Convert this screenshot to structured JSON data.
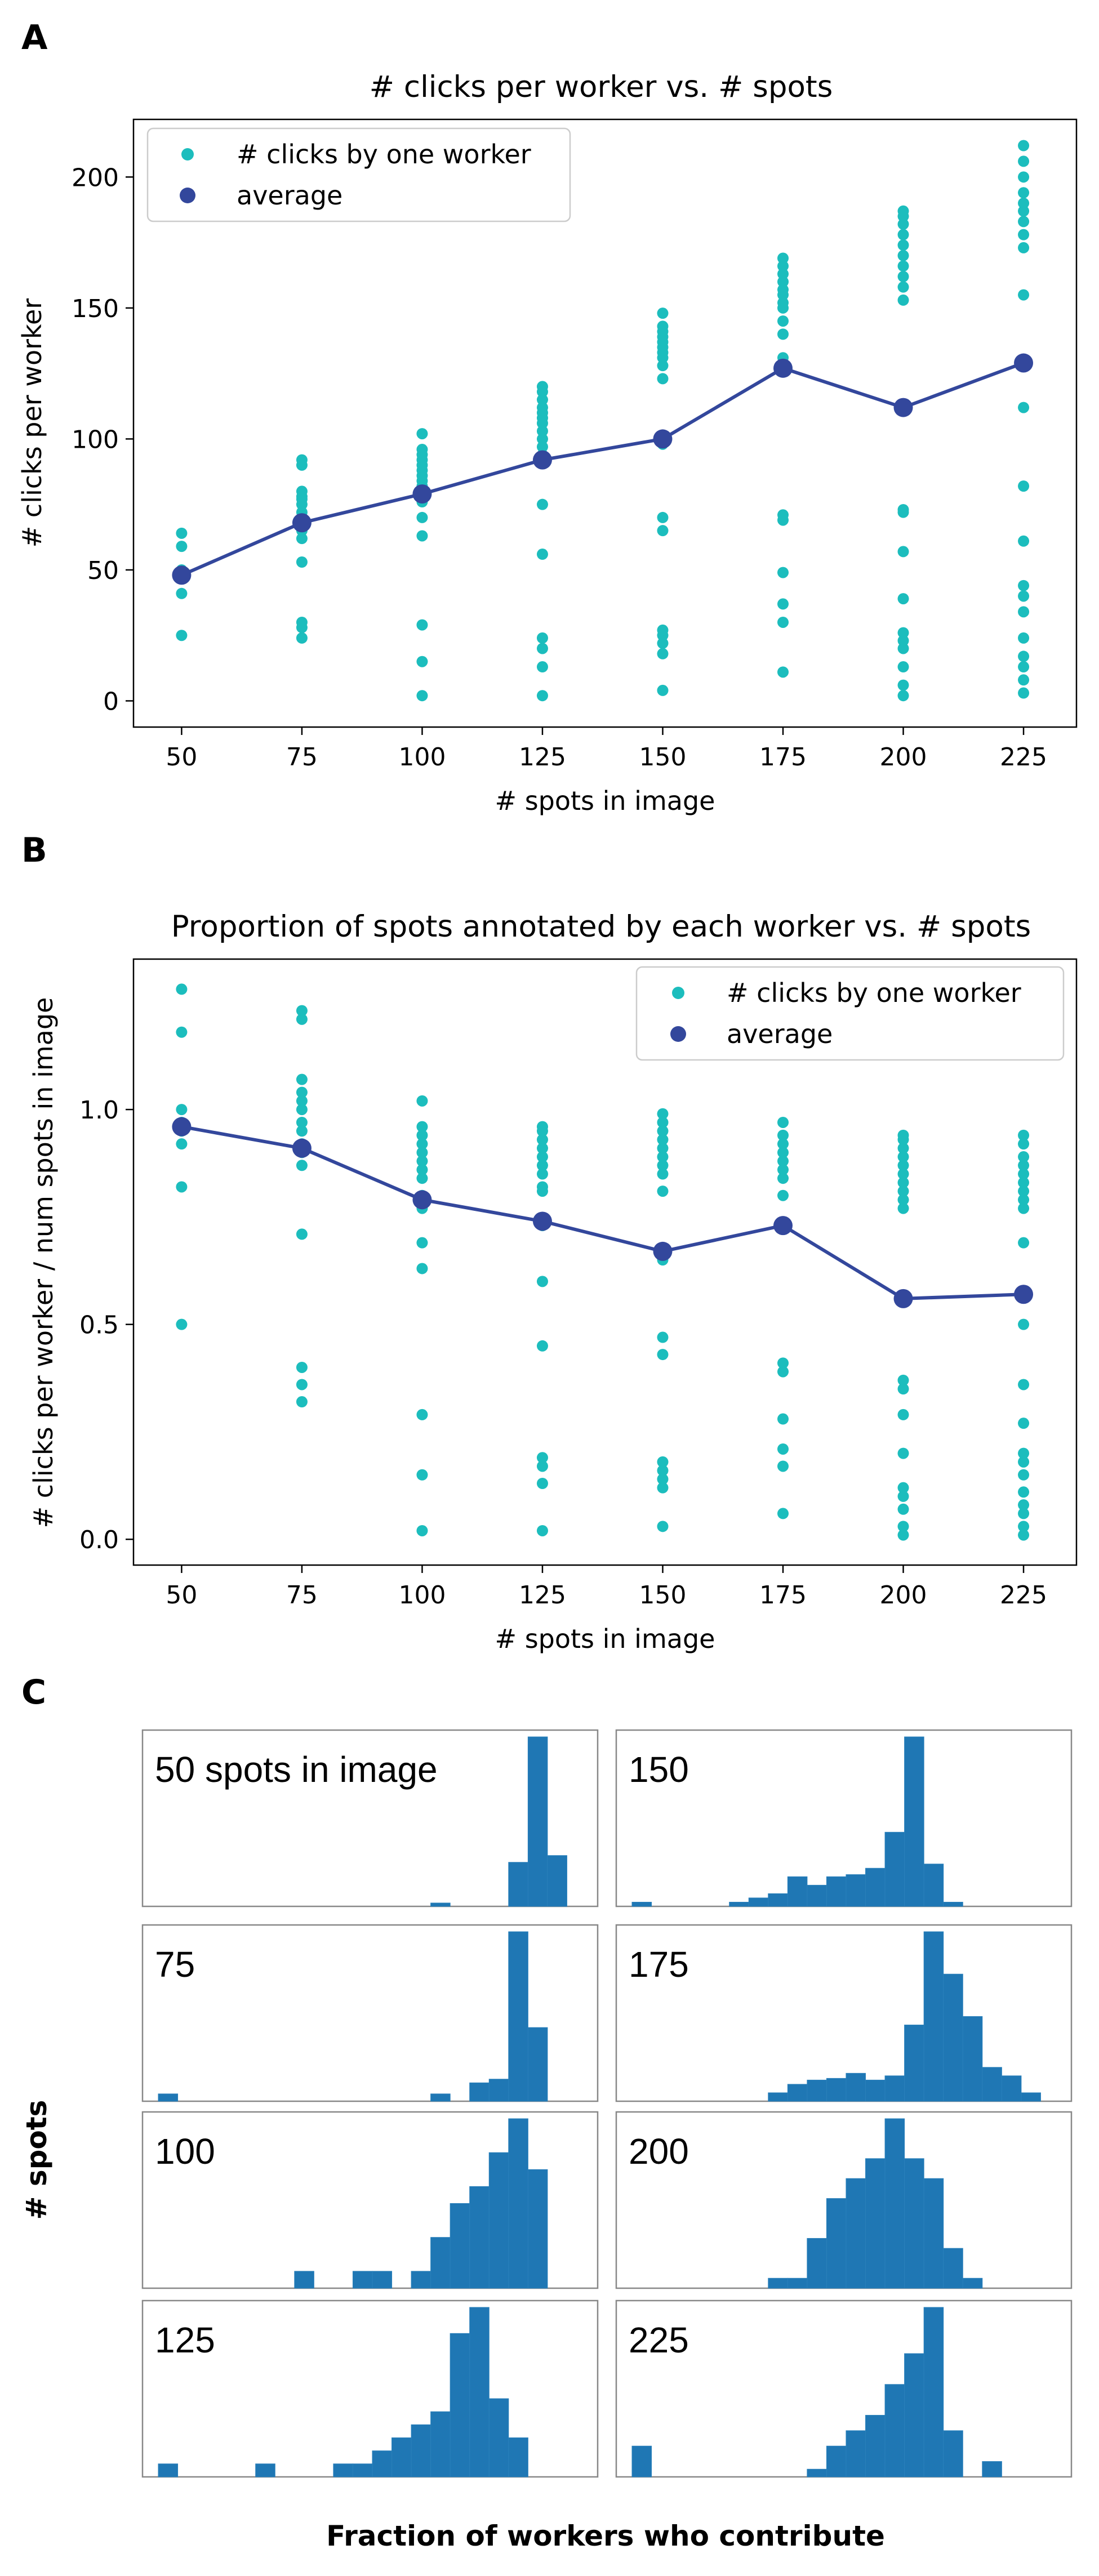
{
  "colors": {
    "worker": "#1cbdbd",
    "average": "#33479c",
    "hist": "#1f77b4",
    "axis": "#000000",
    "frame": "#888888"
  },
  "panels": {
    "a": {
      "letter": "A"
    },
    "b": {
      "letter": "B"
    },
    "c": {
      "letter": "C",
      "ylabel": "# spots",
      "xlabel": "Fraction of workers who contribute"
    }
  },
  "chart_data": [
    {
      "type": "scatter",
      "panel": "A",
      "title": "# clicks per worker vs. # spots",
      "xlabel": "# spots in image",
      "ylabel": "# clicks per worker",
      "xlim": [
        40,
        236
      ],
      "ylim": [
        -10,
        222
      ],
      "xticks": [
        50,
        75,
        100,
        125,
        150,
        175,
        200,
        225
      ],
      "yticks": [
        0,
        50,
        100,
        150,
        200
      ],
      "legend": {
        "placement": "top-left",
        "entries": [
          "# clicks by one worker",
          "average"
        ]
      },
      "grid": false,
      "series": [
        {
          "name": "# clicks by one worker",
          "points": [
            {
              "x": 50,
              "y": [
                25,
                41,
                48,
                50,
                59,
                64
              ]
            },
            {
              "x": 75,
              "y": [
                24,
                28,
                30,
                53,
                62,
                65,
                67,
                69,
                70,
                72,
                75,
                77,
                78,
                80,
                90,
                92
              ]
            },
            {
              "x": 100,
              "y": [
                2,
                15,
                29,
                63,
                70,
                76,
                78,
                80,
                82,
                84,
                86,
                88,
                90,
                92,
                94,
                96,
                102
              ]
            },
            {
              "x": 125,
              "y": [
                2,
                13,
                20,
                24,
                56,
                75,
                92,
                94,
                97,
                100,
                103,
                106,
                108,
                110,
                112,
                115,
                118,
                120
              ]
            },
            {
              "x": 150,
              "y": [
                4,
                18,
                22,
                25,
                27,
                65,
                70,
                98,
                123,
                128,
                131,
                133,
                135,
                137,
                139,
                141,
                143,
                148
              ]
            },
            {
              "x": 175,
              "y": [
                11,
                30,
                37,
                49,
                69,
                71,
                128,
                131,
                140,
                145,
                150,
                152,
                155,
                157,
                160,
                163,
                166,
                169
              ]
            },
            {
              "x": 200,
              "y": [
                2,
                6,
                13,
                20,
                23,
                26,
                39,
                57,
                72,
                73,
                153,
                158,
                162,
                166,
                170,
                174,
                178,
                182,
                185,
                187
              ]
            },
            {
              "x": 225,
              "y": [
                3,
                8,
                13,
                17,
                24,
                34,
                40,
                44,
                61,
                82,
                112,
                155,
                173,
                178,
                183,
                187,
                190,
                194,
                200,
                206,
                212
              ]
            }
          ]
        },
        {
          "name": "average",
          "points": [
            {
              "x": 50,
              "y": 48
            },
            {
              "x": 75,
              "y": 68
            },
            {
              "x": 100,
              "y": 79
            },
            {
              "x": 125,
              "y": 92
            },
            {
              "x": 150,
              "y": 100
            },
            {
              "x": 175,
              "y": 127
            },
            {
              "x": 200,
              "y": 112
            },
            {
              "x": 225,
              "y": 129
            }
          ]
        }
      ]
    },
    {
      "type": "scatter",
      "panel": "B",
      "title": "Proportion of spots annotated by each worker vs. # spots",
      "xlabel": "# spots in image",
      "ylabel": "# clicks per worker / num spots in image",
      "xlim": [
        40,
        236
      ],
      "ylim": [
        -0.06,
        1.35
      ],
      "xticks": [
        50,
        75,
        100,
        125,
        150,
        175,
        200,
        225
      ],
      "yticks": [
        0.0,
        0.5,
        1.0
      ],
      "ytick_labels": [
        "0.0",
        "0.5",
        "1.0"
      ],
      "legend": {
        "placement": "top-right",
        "entries": [
          "# clicks by one worker",
          "average"
        ]
      },
      "grid": false,
      "series": [
        {
          "name": "# clicks by one worker",
          "points": [
            {
              "x": 50,
              "y": [
                0.5,
                0.82,
                0.92,
                0.95,
                0.97,
                1.0,
                1.18,
                1.28
              ]
            },
            {
              "x": 75,
              "y": [
                0.32,
                0.36,
                0.4,
                0.71,
                0.87,
                0.9,
                0.92,
                0.95,
                0.97,
                1.0,
                1.02,
                1.04,
                1.07,
                1.21,
                1.23
              ]
            },
            {
              "x": 100,
              "y": [
                0.02,
                0.15,
                0.29,
                0.63,
                0.69,
                0.77,
                0.79,
                0.8,
                0.84,
                0.86,
                0.88,
                0.9,
                0.92,
                0.94,
                0.96,
                1.02
              ]
            },
            {
              "x": 125,
              "y": [
                0.02,
                0.13,
                0.17,
                0.19,
                0.45,
                0.6,
                0.73,
                0.81,
                0.82,
                0.85,
                0.87,
                0.89,
                0.91,
                0.93,
                0.95,
                0.96
              ]
            },
            {
              "x": 150,
              "y": [
                0.03,
                0.12,
                0.14,
                0.16,
                0.18,
                0.43,
                0.47,
                0.65,
                0.81,
                0.85,
                0.87,
                0.89,
                0.91,
                0.93,
                0.95,
                0.97,
                0.99
              ]
            },
            {
              "x": 175,
              "y": [
                0.06,
                0.17,
                0.21,
                0.28,
                0.39,
                0.41,
                0.73,
                0.8,
                0.84,
                0.86,
                0.88,
                0.9,
                0.92,
                0.94,
                0.97
              ]
            },
            {
              "x": 200,
              "y": [
                0.01,
                0.03,
                0.07,
                0.1,
                0.12,
                0.2,
                0.29,
                0.35,
                0.37,
                0.77,
                0.79,
                0.81,
                0.83,
                0.85,
                0.87,
                0.89,
                0.91,
                0.93,
                0.94
              ]
            },
            {
              "x": 225,
              "y": [
                0.01,
                0.03,
                0.06,
                0.08,
                0.11,
                0.15,
                0.18,
                0.2,
                0.27,
                0.36,
                0.5,
                0.69,
                0.77,
                0.79,
                0.81,
                0.83,
                0.85,
                0.87,
                0.89,
                0.92,
                0.94
              ]
            }
          ]
        },
        {
          "name": "average",
          "points": [
            {
              "x": 50,
              "y": 0.96
            },
            {
              "x": 75,
              "y": 0.91
            },
            {
              "x": 100,
              "y": 0.79
            },
            {
              "x": 125,
              "y": 0.74
            },
            {
              "x": 150,
              "y": 0.67
            },
            {
              "x": 175,
              "y": 0.73
            },
            {
              "x": 200,
              "y": 0.56
            },
            {
              "x": 225,
              "y": 0.57
            }
          ]
        }
      ]
    },
    {
      "type": "bar",
      "panel": "C",
      "subtype": "histogram-grid",
      "xlabel": "Fraction of workers who contribute",
      "ylabel": "# spots",
      "bins": 22,
      "axes_ticks": false,
      "panels": [
        {
          "label": "50 spots in image",
          "counts": [
            0,
            0,
            0,
            0,
            0,
            0,
            0,
            0,
            0,
            0,
            0,
            0,
            0,
            0,
            1,
            0,
            0,
            0,
            13,
            50,
            15,
            0
          ]
        },
        {
          "label": "75",
          "counts": [
            2,
            0,
            0,
            0,
            0,
            0,
            0,
            0,
            0,
            0,
            0,
            0,
            0,
            0,
            2,
            0,
            5,
            6,
            46,
            20,
            0,
            0
          ]
        },
        {
          "label": "100",
          "counts": [
            0,
            0,
            0,
            0,
            0,
            0,
            0,
            1,
            0,
            0,
            1,
            1,
            0,
            1,
            3,
            5,
            6,
            8,
            10,
            7,
            0,
            0
          ]
        },
        {
          "label": "125",
          "counts": [
            1,
            0,
            0,
            0,
            0,
            1,
            0,
            0,
            0,
            1,
            1,
            2,
            3,
            4,
            5,
            11,
            13,
            6,
            3,
            0,
            0,
            0
          ]
        },
        {
          "label": "150",
          "counts": [
            0.2,
            0,
            0,
            0,
            0,
            0.2,
            0.4,
            0.6,
            1.4,
            1.0,
            1.4,
            1.5,
            1.8,
            3.5,
            8.0,
            2.0,
            0.2,
            0,
            0,
            0,
            0,
            0
          ]
        },
        {
          "label": "175",
          "counts": [
            0,
            0,
            0,
            0,
            0,
            0,
            0,
            1,
            2,
            2.5,
            2.7,
            3.3,
            2.5,
            3,
            9,
            20,
            15,
            10,
            4,
            3,
            1,
            0
          ]
        },
        {
          "label": "200",
          "counts": [
            0,
            0,
            0,
            0,
            0,
            0,
            0,
            1,
            1,
            5,
            9,
            11,
            13,
            17,
            13,
            11,
            4,
            1,
            0,
            0,
            0,
            0
          ]
        },
        {
          "label": "225",
          "counts": [
            2,
            0,
            0,
            0,
            0,
            0,
            0,
            0,
            0,
            0.5,
            2,
            3,
            4,
            6,
            8,
            11,
            3,
            0,
            1,
            0,
            0,
            0
          ]
        }
      ]
    }
  ]
}
